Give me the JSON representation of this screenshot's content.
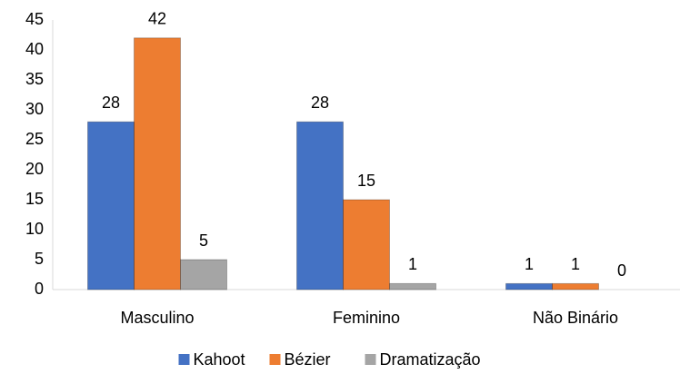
{
  "chart_data": {
    "type": "bar",
    "categories": [
      "Masculino",
      "Feminino",
      "Não Binário"
    ],
    "series": [
      {
        "name": "Kahoot",
        "color": "#4472c4",
        "values": [
          28,
          28,
          1
        ]
      },
      {
        "name": "Bézier",
        "color": "#ed7d31",
        "values": [
          42,
          15,
          1
        ]
      },
      {
        "name": "Dramatização",
        "color": "#a5a5a5",
        "values": [
          5,
          1,
          0
        ]
      }
    ],
    "ylim": [
      0,
      45
    ],
    "yticks": [
      0,
      5,
      10,
      15,
      20,
      25,
      30,
      35,
      40,
      45
    ],
    "grid": false,
    "legend": "bottom"
  }
}
